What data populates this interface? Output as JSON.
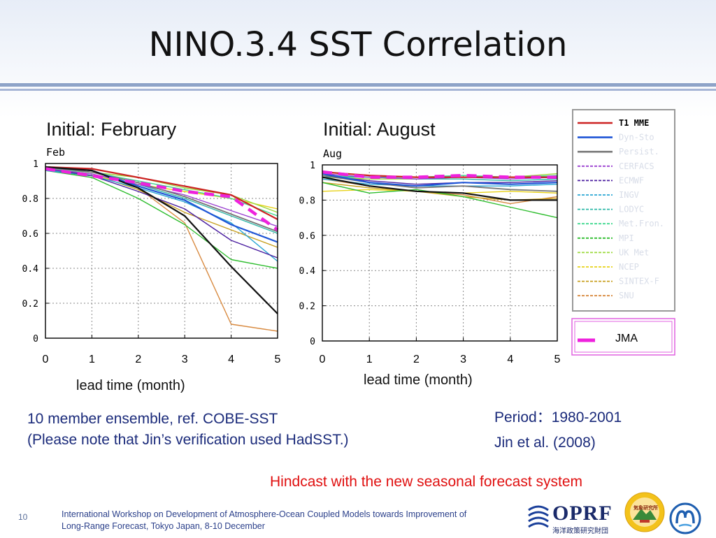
{
  "slide": {
    "title": "NINO.3.4 SST Correlation",
    "rule_colors": [
      "#8ea3c8",
      "#a7b6d6"
    ],
    "page_number": "10",
    "footer_line1": "International Workshop on Development of Atmosphere-Ocean Coupled Models towards Improvement of",
    "footer_line2": "Long-Range Forecast, Tokyo Japan, 8-10 December",
    "ensemble_note": "10 member ensemble, ref. COBE-SST",
    "verification_note": "(Please note that Jin’s verification used HadSST.)",
    "period": "Period：1980-2001",
    "reference": "Jin et al. (2008)",
    "hindcast_note": "Hindcast with the new seasonal forecast system",
    "hindcast_color": "#e01010",
    "logo_oprf_text": "OPRF",
    "logo_oprf_subtext": "海洋政策研究財団",
    "logo_jma_text": "気象研究所"
  },
  "legend": {
    "entries": [
      {
        "name": "T1  MME",
        "color": "#cc2222",
        "style": "solid"
      },
      {
        "name": "Dyn-Sto",
        "color": "#1f55d6",
        "style": "solid"
      },
      {
        "name": "Persist.",
        "color": "#777777",
        "style": "solid"
      },
      {
        "name": "CERFACS",
        "color": "#9a3fd0",
        "style": "dashed"
      },
      {
        "name": "ECMWF",
        "color": "#4b1fa0",
        "style": "dashed"
      },
      {
        "name": "INGV",
        "color": "#2aa6d4",
        "style": "dashed"
      },
      {
        "name": "LODYC",
        "color": "#2fb8a8",
        "style": "dashed"
      },
      {
        "name": "Met.Fron.",
        "color": "#40d890",
        "style": "dashed"
      },
      {
        "name": "MPI",
        "color": "#2ebd2e",
        "style": "dashed"
      },
      {
        "name": "UK  Met",
        "color": "#9ad93a",
        "style": "dashed"
      },
      {
        "name": "NCEP",
        "color": "#e8d21a",
        "style": "dashed"
      },
      {
        "name": "SINTEX-F",
        "color": "#c8a020",
        "style": "dashed"
      },
      {
        "name": "SNU",
        "color": "#d88a40",
        "style": "dashed"
      }
    ],
    "jma_label": "JMA",
    "jma_color": "#ee22dd",
    "jma_box_color": "#e060e0"
  },
  "chart_data": [
    {
      "type": "line",
      "heading": "Initial: February",
      "panel_tag": "Feb",
      "xlabel": "lead time (month)",
      "x": [
        0,
        1,
        2,
        3,
        4,
        5
      ],
      "xlim": [
        0,
        5
      ],
      "ylim": [
        0,
        1
      ],
      "yticks": [
        "0",
        "0.2",
        "0.4",
        "0.6",
        "0.8",
        "1"
      ],
      "grid": true,
      "series": [
        {
          "color": "#d88a40",
          "width": 1.4,
          "values": [
            0.97,
            0.96,
            0.86,
            0.66,
            0.08,
            0.04
          ]
        },
        {
          "color": "#c8a020",
          "width": 1.4,
          "values": [
            0.97,
            0.94,
            0.85,
            0.72,
            0.62,
            0.52
          ]
        },
        {
          "color": "#e8d21a",
          "width": 1.4,
          "values": [
            0.96,
            0.93,
            0.88,
            0.84,
            0.8,
            0.74
          ]
        },
        {
          "color": "#9ad93a",
          "width": 1.4,
          "values": [
            0.97,
            0.95,
            0.92,
            0.86,
            0.82,
            0.72
          ]
        },
        {
          "color": "#2ebd2e",
          "width": 1.4,
          "values": [
            0.96,
            0.92,
            0.8,
            0.65,
            0.45,
            0.4
          ]
        },
        {
          "color": "#40d890",
          "width": 1.4,
          "values": [
            0.97,
            0.95,
            0.9,
            0.85,
            0.8,
            0.7
          ]
        },
        {
          "color": "#2fb8a8",
          "width": 1.4,
          "values": [
            0.96,
            0.94,
            0.88,
            0.8,
            0.7,
            0.6
          ]
        },
        {
          "color": "#2aa6d4",
          "width": 1.4,
          "values": [
            0.96,
            0.93,
            0.86,
            0.78,
            0.66,
            0.44
          ]
        },
        {
          "color": "#4b1fa0",
          "width": 1.4,
          "values": [
            0.97,
            0.93,
            0.84,
            0.74,
            0.56,
            0.46
          ]
        },
        {
          "color": "#9a3fd0",
          "width": 1.4,
          "values": [
            0.97,
            0.94,
            0.88,
            0.82,
            0.73,
            0.64
          ]
        },
        {
          "color": "#777777",
          "width": 1.8,
          "values": [
            0.98,
            0.95,
            0.89,
            0.81,
            0.71,
            0.61
          ]
        },
        {
          "color": "#1f55d6",
          "width": 2.2,
          "values": [
            0.98,
            0.96,
            0.87,
            0.79,
            0.65,
            0.55
          ]
        },
        {
          "color": "#cc2222",
          "width": 2.2,
          "values": [
            0.98,
            0.97,
            0.92,
            0.87,
            0.82,
            0.68
          ]
        },
        {
          "color": "#111111",
          "width": 2.2,
          "values": [
            0.98,
            0.96,
            0.86,
            0.7,
            0.41,
            0.14
          ]
        },
        {
          "color": "#ee22dd",
          "width": 4.5,
          "dash": true,
          "values": [
            0.97,
            0.93,
            0.89,
            0.84,
            0.81,
            0.62
          ]
        }
      ]
    },
    {
      "type": "line",
      "heading": "Initial: August",
      "panel_tag": "Aug",
      "xlabel": "lead time (month)",
      "x": [
        0,
        1,
        2,
        3,
        4,
        5
      ],
      "xlim": [
        0,
        5
      ],
      "ylim": [
        0,
        1
      ],
      "yticks": [
        "0",
        "0.2",
        "0.4",
        "0.6",
        "0.8",
        "1"
      ],
      "grid": true,
      "series": [
        {
          "color": "#d88a40",
          "width": 1.4,
          "values": [
            0.92,
            0.88,
            0.85,
            0.83,
            0.78,
            0.82
          ]
        },
        {
          "color": "#c8a020",
          "width": 1.4,
          "values": [
            0.9,
            0.87,
            0.85,
            0.82,
            0.8,
            0.81
          ]
        },
        {
          "color": "#e8d21a",
          "width": 1.4,
          "values": [
            0.85,
            0.86,
            0.85,
            0.84,
            0.85,
            0.84
          ]
        },
        {
          "color": "#9ad93a",
          "width": 1.4,
          "values": [
            0.93,
            0.92,
            0.92,
            0.93,
            0.93,
            0.95
          ]
        },
        {
          "color": "#2ebd2e",
          "width": 1.4,
          "values": [
            0.9,
            0.84,
            0.86,
            0.82,
            0.76,
            0.7
          ]
        },
        {
          "color": "#40d890",
          "width": 1.4,
          "values": [
            0.94,
            0.93,
            0.93,
            0.94,
            0.93,
            0.94
          ]
        },
        {
          "color": "#2fb8a8",
          "width": 1.4,
          "values": [
            0.93,
            0.93,
            0.92,
            0.92,
            0.91,
            0.92
          ]
        },
        {
          "color": "#2aa6d4",
          "width": 1.4,
          "values": [
            0.92,
            0.89,
            0.88,
            0.88,
            0.88,
            0.89
          ]
        },
        {
          "color": "#4b1fa0",
          "width": 1.4,
          "values": [
            0.94,
            0.91,
            0.89,
            0.9,
            0.9,
            0.91
          ]
        },
        {
          "color": "#9a3fd0",
          "width": 1.4,
          "values": [
            0.95,
            0.93,
            0.92,
            0.93,
            0.92,
            0.93
          ]
        },
        {
          "color": "#777777",
          "width": 1.8,
          "values": [
            0.94,
            0.9,
            0.87,
            0.88,
            0.86,
            0.85
          ]
        },
        {
          "color": "#1f55d6",
          "width": 2.2,
          "values": [
            0.95,
            0.9,
            0.88,
            0.9,
            0.89,
            0.9
          ]
        },
        {
          "color": "#cc2222",
          "width": 2.2,
          "values": [
            0.96,
            0.94,
            0.93,
            0.93,
            0.93,
            0.93
          ]
        },
        {
          "color": "#111111",
          "width": 2.2,
          "values": [
            0.93,
            0.88,
            0.85,
            0.84,
            0.8,
            0.8
          ]
        },
        {
          "color": "#ee22dd",
          "width": 4.5,
          "dash": true,
          "values": [
            0.96,
            0.93,
            0.93,
            0.94,
            0.93,
            0.93
          ]
        }
      ]
    }
  ]
}
